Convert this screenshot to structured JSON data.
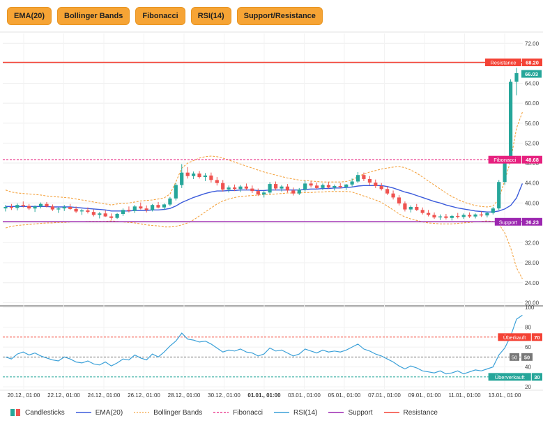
{
  "toolbar": {
    "buttons": [
      "EMA(20)",
      "Bollinger Bands",
      "Fibonacci",
      "RSI(14)",
      "Support/Resistance"
    ]
  },
  "colors": {
    "up": "#26a69a",
    "down": "#ef5350",
    "ema": "#3b5bdb",
    "bollinger": "#f4a340",
    "fibonacci": "#e6217f",
    "rsi": "#3aa0d8",
    "support": "#9c27b0",
    "resistance": "#f44336",
    "accent": "#f6a435"
  },
  "legend": [
    {
      "label": "Candlesticks",
      "icon": "candlestick-icon"
    },
    {
      "label": "EMA(20)",
      "icon": "line-solid"
    },
    {
      "label": "Bollinger Bands",
      "icon": "line-dotted"
    },
    {
      "label": "Fibonacci",
      "icon": "line-dashed"
    },
    {
      "label": "RSI(14)",
      "icon": "line-solid"
    },
    {
      "label": "Support",
      "icon": "line-solid"
    },
    {
      "label": "Resistance",
      "icon": "line-solid"
    }
  ],
  "chart_data": {
    "type": "candlestick",
    "price_axis": {
      "ticks": [
        "72.00",
        "68.00",
        "64.00",
        "60.00",
        "56.00",
        "52.00",
        "48.00",
        "44.00",
        "40.00",
        "36.00",
        "32.00",
        "28.00",
        "24.00",
        "20.00"
      ],
      "ylim": [
        19.5,
        74
      ]
    },
    "rsi_axis": {
      "ticks": [
        "100",
        "80",
        "60",
        "40",
        "20"
      ],
      "ylim": [
        18,
        100
      ]
    },
    "x_tick_labels": [
      "20.12., 01:00",
      "22.12., 01:00",
      "24.12., 01:00",
      "26.12., 01:00",
      "28.12., 01:00",
      "30.12., 01:00",
      "01.01., 01:00",
      "03.01., 01:00",
      "05.01., 01:00",
      "07.01., 01:00",
      "09.01., 01:00",
      "11.01., 01:00",
      "13.01., 01:00"
    ],
    "levels": {
      "resistance": {
        "label": "Resistance",
        "value": "68.20",
        "y": 68.2
      },
      "fibonacci": {
        "label": "Fibonacci",
        "value": "48.68",
        "y": 48.68
      },
      "support": {
        "label": "Support",
        "value": "36.23",
        "y": 36.23
      },
      "last_price": {
        "value": "66.03",
        "y": 66.03
      },
      "overbought": {
        "label": "Überkauft",
        "value": "70",
        "y": 70
      },
      "mid": {
        "value1": "50",
        "value2": "50",
        "y": 50
      },
      "oversold": {
        "label": "Überverkauft",
        "value": "30",
        "y": 30
      }
    },
    "candles": [
      [
        38.9,
        39.6,
        38.3,
        39.2
      ],
      [
        39.2,
        39.8,
        38.6,
        39.0
      ],
      [
        39.0,
        39.9,
        38.5,
        39.6
      ],
      [
        39.6,
        40.3,
        39.1,
        39.4
      ],
      [
        39.4,
        39.8,
        38.6,
        38.9
      ],
      [
        38.9,
        39.5,
        38.2,
        39.3
      ],
      [
        39.3,
        40.1,
        38.9,
        39.8
      ],
      [
        39.8,
        40.2,
        39.1,
        39.3
      ],
      [
        39.3,
        39.7,
        38.4,
        38.7
      ],
      [
        38.7,
        39.2,
        38.0,
        38.9
      ],
      [
        38.9,
        39.6,
        38.4,
        39.2
      ],
      [
        39.2,
        39.8,
        38.6,
        38.8
      ],
      [
        38.8,
        39.3,
        38.0,
        38.3
      ],
      [
        38.3,
        38.8,
        37.6,
        38.5
      ],
      [
        38.5,
        39.1,
        37.9,
        38.2
      ],
      [
        38.2,
        38.7,
        37.3,
        37.6
      ],
      [
        37.6,
        38.2,
        36.9,
        37.9
      ],
      [
        37.9,
        38.5,
        37.2,
        37.3
      ],
      [
        37.3,
        37.9,
        36.6,
        37.0
      ],
      [
        37.0,
        38.0,
        36.8,
        37.8
      ],
      [
        37.8,
        38.9,
        37.4,
        38.6
      ],
      [
        38.6,
        39.3,
        38.1,
        38.4
      ],
      [
        38.4,
        39.6,
        38.0,
        39.3
      ],
      [
        39.3,
        40.1,
        38.7,
        38.9
      ],
      [
        38.9,
        39.5,
        38.1,
        38.6
      ],
      [
        38.6,
        39.8,
        38.3,
        39.6
      ],
      [
        39.6,
        40.2,
        38.9,
        39.1
      ],
      [
        39.1,
        39.9,
        38.6,
        39.7
      ],
      [
        39.7,
        41.2,
        39.4,
        40.9
      ],
      [
        40.9,
        44.0,
        40.5,
        43.6
      ],
      [
        43.6,
        47.8,
        43.0,
        46.1
      ],
      [
        46.1,
        47.2,
        44.9,
        45.4
      ],
      [
        45.4,
        46.3,
        44.8,
        45.9
      ],
      [
        45.9,
        46.4,
        44.9,
        45.2
      ],
      [
        45.2,
        46.0,
        44.4,
        45.5
      ],
      [
        45.5,
        46.1,
        44.1,
        44.6
      ],
      [
        44.6,
        45.2,
        43.5,
        44.0
      ],
      [
        44.0,
        44.6,
        42.3,
        42.7
      ],
      [
        42.7,
        43.5,
        42.1,
        43.1
      ],
      [
        43.1,
        43.7,
        42.4,
        42.8
      ],
      [
        42.8,
        43.6,
        42.2,
        43.3
      ],
      [
        43.3,
        43.9,
        42.6,
        42.9
      ],
      [
        42.9,
        43.5,
        42.0,
        42.4
      ],
      [
        42.4,
        42.9,
        41.4,
        41.7
      ],
      [
        41.7,
        42.4,
        41.1,
        42.1
      ],
      [
        42.1,
        44.2,
        41.8,
        43.8
      ],
      [
        43.8,
        44.3,
        42.5,
        42.9
      ],
      [
        42.9,
        43.6,
        42.3,
        43.3
      ],
      [
        43.3,
        43.8,
        42.1,
        42.5
      ],
      [
        42.5,
        43.1,
        41.5,
        41.9
      ],
      [
        41.9,
        43.0,
        41.6,
        42.7
      ],
      [
        42.7,
        44.5,
        42.3,
        43.9
      ],
      [
        43.9,
        44.4,
        43.1,
        43.5
      ],
      [
        43.5,
        44.1,
        42.8,
        43.0
      ],
      [
        43.0,
        43.9,
        42.6,
        43.6
      ],
      [
        43.6,
        44.2,
        42.9,
        43.1
      ],
      [
        43.1,
        43.7,
        42.5,
        43.4
      ],
      [
        43.4,
        44.0,
        42.9,
        43.2
      ],
      [
        43.2,
        43.8,
        42.6,
        43.7
      ],
      [
        43.7,
        44.9,
        43.3,
        44.3
      ],
      [
        44.3,
        46.2,
        44.0,
        45.6
      ],
      [
        45.6,
        46.1,
        44.4,
        44.8
      ],
      [
        44.8,
        45.4,
        43.6,
        44.1
      ],
      [
        44.1,
        44.7,
        43.0,
        43.4
      ],
      [
        43.4,
        44.0,
        42.5,
        42.8
      ],
      [
        42.8,
        43.3,
        41.6,
        41.9
      ],
      [
        41.9,
        42.5,
        40.7,
        41.1
      ],
      [
        41.1,
        41.6,
        39.5,
        39.9
      ],
      [
        39.9,
        40.3,
        38.3,
        38.7
      ],
      [
        38.7,
        39.5,
        38.1,
        39.2
      ],
      [
        39.2,
        39.8,
        38.4,
        38.6
      ],
      [
        38.6,
        39.1,
        37.7,
        38.0
      ],
      [
        38.0,
        38.6,
        37.3,
        37.6
      ],
      [
        37.6,
        38.1,
        36.8,
        37.1
      ],
      [
        37.1,
        37.7,
        36.6,
        37.3
      ],
      [
        37.3,
        37.8,
        36.7,
        37.0
      ],
      [
        37.0,
        37.6,
        36.5,
        37.4
      ],
      [
        37.4,
        38.0,
        36.9,
        37.2
      ],
      [
        37.2,
        37.9,
        36.8,
        37.6
      ],
      [
        37.6,
        38.1,
        37.0,
        37.3
      ],
      [
        37.3,
        37.9,
        36.9,
        37.7
      ],
      [
        37.7,
        38.3,
        37.2,
        37.5
      ],
      [
        37.5,
        38.2,
        37.1,
        38.0
      ],
      [
        38.0,
        39.2,
        37.7,
        38.9
      ],
      [
        38.9,
        44.6,
        38.6,
        44.2
      ],
      [
        44.2,
        49.3,
        43.6,
        48.9
      ],
      [
        48.9,
        64.8,
        48.4,
        64.3
      ],
      [
        64.3,
        67.1,
        61.6,
        66.03
      ]
    ],
    "ema": [
      39.3,
      39.3,
      39.3,
      39.3,
      39.3,
      39.3,
      39.3,
      39.3,
      39.2,
      39.2,
      39.2,
      39.2,
      39.1,
      39.0,
      38.9,
      38.8,
      38.7,
      38.6,
      38.4,
      38.4,
      38.4,
      38.4,
      38.5,
      38.5,
      38.5,
      38.6,
      38.6,
      38.7,
      38.9,
      39.4,
      40.1,
      40.6,
      41.1,
      41.5,
      41.9,
      42.2,
      42.4,
      42.4,
      42.5,
      42.5,
      42.6,
      42.6,
      42.6,
      42.5,
      42.5,
      42.6,
      42.6,
      42.6,
      42.6,
      42.6,
      42.6,
      42.7,
      42.8,
      42.8,
      42.9,
      42.9,
      43.0,
      43.0,
      43.1,
      43.2,
      43.4,
      43.5,
      43.5,
      43.5,
      43.5,
      43.3,
      43.0,
      42.6,
      42.2,
      41.9,
      41.5,
      41.1,
      40.7,
      40.3,
      40.0,
      39.6,
      39.3,
      39.0,
      38.8,
      38.6,
      38.4,
      38.3,
      38.2,
      38.2,
      38.4,
      38.8,
      39.5,
      41.0,
      43.9
    ],
    "bb_upper": [
      42.6,
      42.2,
      42.0,
      41.9,
      41.8,
      41.7,
      41.6,
      41.4,
      41.3,
      41.2,
      41.1,
      41.0,
      40.8,
      40.6,
      40.4,
      40.2,
      40.0,
      39.8,
      39.6,
      39.8,
      39.9,
      40.0,
      40.2,
      40.4,
      40.5,
      40.6,
      40.8,
      41.0,
      41.8,
      44.2,
      47.0,
      48.0,
      48.5,
      49.0,
      49.3,
      49.4,
      49.3,
      49.0,
      48.6,
      48.2,
      47.8,
      47.4,
      47.0,
      46.6,
      46.2,
      45.9,
      45.6,
      45.3,
      45.0,
      44.8,
      44.6,
      44.5,
      44.4,
      44.3,
      44.2,
      44.2,
      44.2,
      44.2,
      44.3,
      44.6,
      45.3,
      45.8,
      46.2,
      46.5,
      46.8,
      47.0,
      47.2,
      47.3,
      47.1,
      46.6,
      46.0,
      45.2,
      44.4,
      43.6,
      42.8,
      42.0,
      41.3,
      40.7,
      40.2,
      39.8,
      39.5,
      39.3,
      39.2,
      39.4,
      40.8,
      44.5,
      48.5,
      55.0,
      58.2
    ],
    "bb_lower": [
      35.0,
      35.3,
      35.5,
      35.6,
      35.7,
      35.8,
      35.9,
      36.0,
      36.0,
      36.1,
      36.1,
      36.2,
      36.2,
      36.2,
      36.3,
      36.3,
      36.3,
      36.3,
      36.4,
      36.3,
      36.2,
      36.1,
      36.0,
      35.8,
      35.6,
      35.5,
      35.4,
      35.2,
      35.2,
      35.3,
      35.6,
      36.0,
      36.6,
      37.4,
      38.2,
      39.0,
      39.8,
      40.4,
      40.8,
      41.1,
      41.3,
      41.4,
      41.5,
      41.6,
      41.7,
      41.7,
      41.8,
      41.9,
      42.0,
      42.0,
      42.0,
      42.1,
      42.1,
      42.2,
      42.2,
      42.3,
      42.3,
      42.3,
      42.3,
      42.2,
      41.8,
      41.4,
      41.0,
      40.6,
      40.1,
      39.4,
      38.6,
      37.8,
      37.2,
      36.8,
      36.5,
      36.2,
      36.0,
      35.9,
      35.8,
      35.8,
      35.8,
      35.9,
      36.0,
      36.1,
      36.2,
      36.3,
      36.4,
      36.3,
      35.8,
      34.0,
      31.0,
      27.0,
      24.8
    ],
    "rsi": [
      50,
      48,
      53,
      55,
      52,
      54,
      51,
      49,
      47,
      46,
      50,
      48,
      45,
      44,
      46,
      43,
      42,
      45,
      41,
      44,
      48,
      47,
      52,
      49,
      47,
      53,
      50,
      55,
      61,
      66,
      74,
      68,
      67,
      65,
      66,
      63,
      59,
      55,
      57,
      56,
      58,
      55,
      54,
      51,
      53,
      59,
      56,
      57,
      54,
      51,
      53,
      58,
      56,
      54,
      57,
      55,
      56,
      55,
      57,
      60,
      63,
      58,
      56,
      53,
      51,
      48,
      45,
      41,
      38,
      41,
      39,
      36,
      35,
      34,
      36,
      33,
      34,
      36,
      33,
      35,
      37,
      36,
      38,
      40,
      52,
      59,
      71,
      88,
      92
    ]
  }
}
